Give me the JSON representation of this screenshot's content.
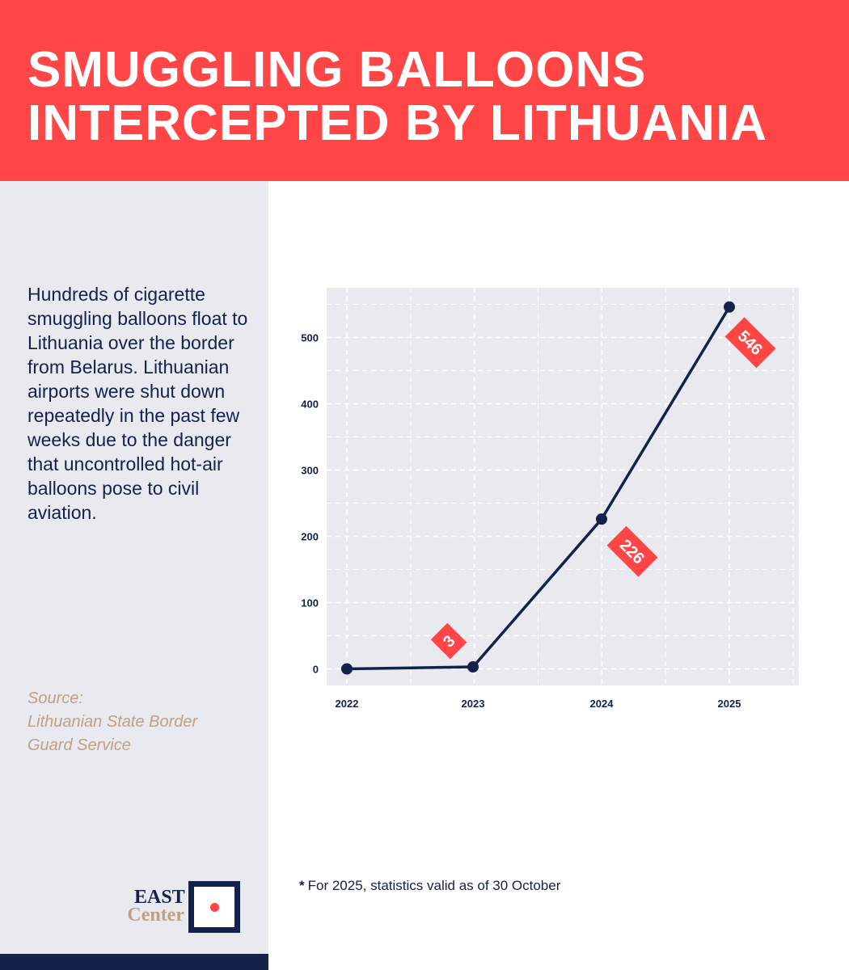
{
  "header": {
    "title_line1": "SMUGGLING BALLOONS",
    "title_line2": "INTERCEPTED BY LITHUANIA"
  },
  "sidebar": {
    "description": "Hundreds of cigarette smuggling balloons float to Lithuania over the border from Belarus. Lithuanian airports were shut down repeatedly in the past few weeks due to the danger that uncontrolled hot-air balloons pose to civil aviation.",
    "source_label": "Source:",
    "source_line1": "Lithuanian State Border",
    "source_line2": "Guard Service"
  },
  "logo": {
    "line1": "EAST",
    "line2": "Center"
  },
  "footnote": {
    "marker": "*",
    "text": "For 2025, statistics valid as of 30 October"
  },
  "colors": {
    "accent": "#ff4545",
    "navy": "#14224a",
    "sidebar_bg": "#e9eaf0",
    "source": "#c0a083",
    "plot_bg": "#e9eaf0"
  },
  "chart_data": {
    "type": "line",
    "title": "",
    "xlabel": "",
    "ylabel": "",
    "categories": [
      "2022",
      "2023",
      "2024",
      "2025"
    ],
    "series": [
      {
        "name": "Smuggling balloons intercepted",
        "values": [
          0,
          3,
          226,
          546
        ]
      }
    ],
    "data_labels": [
      "",
      "3",
      "226",
      "546"
    ],
    "yticks": [
      0,
      100,
      200,
      300,
      400,
      500
    ],
    "ylim": [
      -25,
      575
    ],
    "grid": true,
    "legend": "none"
  }
}
